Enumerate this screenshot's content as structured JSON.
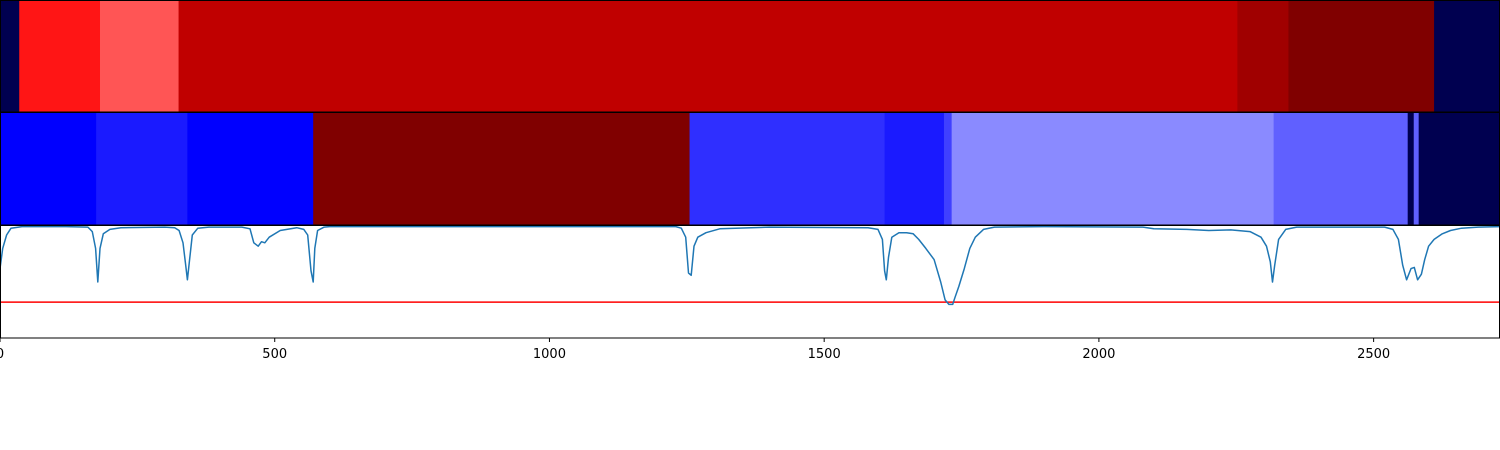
{
  "chart_data": [
    {
      "type": "heatmap",
      "segments": [
        {
          "start": 0,
          "end": 35,
          "color": "#000050"
        },
        {
          "start": 35,
          "end": 182,
          "color": "#ff1515"
        },
        {
          "start": 182,
          "end": 325,
          "color": "#ff5555"
        },
        {
          "start": 325,
          "end": 2252,
          "color": "#c00000"
        },
        {
          "start": 2252,
          "end": 2345,
          "color": "#a00000"
        },
        {
          "start": 2345,
          "end": 2610,
          "color": "#800000"
        },
        {
          "start": 2610,
          "end": 2730,
          "color": "#000050"
        }
      ]
    },
    {
      "type": "heatmap",
      "segments": [
        {
          "start": 0,
          "end": 175,
          "color": "#0000ff"
        },
        {
          "start": 175,
          "end": 341,
          "color": "#1a1aff"
        },
        {
          "start": 341,
          "end": 570,
          "color": "#0000ff"
        },
        {
          "start": 570,
          "end": 1255,
          "color": "#800000"
        },
        {
          "start": 1255,
          "end": 1610,
          "color": "#2f2fff"
        },
        {
          "start": 1610,
          "end": 1718,
          "color": "#1a1aff"
        },
        {
          "start": 1718,
          "end": 1732,
          "color": "#4040ff"
        },
        {
          "start": 1732,
          "end": 2318,
          "color": "#8a8aff"
        },
        {
          "start": 2318,
          "end": 2562,
          "color": "#6060ff"
        },
        {
          "start": 2562,
          "end": 2573,
          "color": "#000050"
        },
        {
          "start": 2573,
          "end": 2582,
          "color": "#6060ff"
        },
        {
          "start": 2582,
          "end": 2730,
          "color": "#000050"
        }
      ]
    },
    {
      "type": "line",
      "xlim": [
        0,
        2730
      ],
      "ylim": [
        0.0,
        1.0
      ],
      "xticks": [
        0,
        500,
        1000,
        1500,
        2000,
        2500
      ],
      "threshold": {
        "value": 0.32,
        "color": "#ff0000"
      },
      "series": [
        {
          "color": "#1f77b4",
          "points": [
            [
              0,
              0.62
            ],
            [
              5,
              0.8
            ],
            [
              12,
              0.92
            ],
            [
              20,
              0.98
            ],
            [
              40,
              0.995
            ],
            [
              120,
              0.995
            ],
            [
              160,
              0.99
            ],
            [
              168,
              0.95
            ],
            [
              174,
              0.8
            ],
            [
              178,
              0.5
            ],
            [
              182,
              0.8
            ],
            [
              188,
              0.93
            ],
            [
              200,
              0.97
            ],
            [
              220,
              0.985
            ],
            [
              300,
              0.99
            ],
            [
              318,
              0.985
            ],
            [
              326,
              0.96
            ],
            [
              333,
              0.85
            ],
            [
              338,
              0.65
            ],
            [
              341,
              0.52
            ],
            [
              345,
              0.7
            ],
            [
              350,
              0.92
            ],
            [
              360,
              0.98
            ],
            [
              380,
              0.99
            ],
            [
              440,
              0.99
            ],
            [
              455,
              0.975
            ],
            [
              462,
              0.85
            ],
            [
              470,
              0.82
            ],
            [
              476,
              0.86
            ],
            [
              482,
              0.85
            ],
            [
              490,
              0.9
            ],
            [
              510,
              0.96
            ],
            [
              540,
              0.985
            ],
            [
              553,
              0.97
            ],
            [
              560,
              0.92
            ],
            [
              566,
              0.6
            ],
            [
              570,
              0.5
            ],
            [
              573,
              0.8
            ],
            [
              578,
              0.96
            ],
            [
              590,
              0.99
            ],
            [
              600,
              0.995
            ],
            [
              1230,
              0.995
            ],
            [
              1240,
              0.98
            ],
            [
              1248,
              0.9
            ],
            [
              1253,
              0.58
            ],
            [
              1258,
              0.56
            ],
            [
              1263,
              0.82
            ],
            [
              1270,
              0.9
            ],
            [
              1285,
              0.94
            ],
            [
              1310,
              0.975
            ],
            [
              1400,
              0.99
            ],
            [
              1580,
              0.985
            ],
            [
              1598,
              0.97
            ],
            [
              1606,
              0.88
            ],
            [
              1610,
              0.6
            ],
            [
              1613,
              0.52
            ],
            [
              1617,
              0.72
            ],
            [
              1623,
              0.9
            ],
            [
              1636,
              0.94
            ],
            [
              1650,
              0.94
            ],
            [
              1662,
              0.93
            ],
            [
              1672,
              0.88
            ],
            [
              1685,
              0.8
            ],
            [
              1700,
              0.7
            ],
            [
              1712,
              0.5
            ],
            [
              1720,
              0.34
            ],
            [
              1727,
              0.3
            ],
            [
              1734,
              0.3
            ],
            [
              1738,
              0.36
            ],
            [
              1745,
              0.46
            ],
            [
              1755,
              0.62
            ],
            [
              1765,
              0.8
            ],
            [
              1775,
              0.9
            ],
            [
              1790,
              0.97
            ],
            [
              1810,
              0.99
            ],
            [
              1900,
              0.995
            ],
            [
              2080,
              0.99
            ],
            [
              2100,
              0.975
            ],
            [
              2160,
              0.97
            ],
            [
              2200,
              0.96
            ],
            [
              2240,
              0.965
            ],
            [
              2275,
              0.95
            ],
            [
              2295,
              0.9
            ],
            [
              2305,
              0.82
            ],
            [
              2312,
              0.68
            ],
            [
              2316,
              0.5
            ],
            [
              2320,
              0.65
            ],
            [
              2327,
              0.88
            ],
            [
              2340,
              0.97
            ],
            [
              2360,
              0.99
            ],
            [
              2520,
              0.99
            ],
            [
              2535,
              0.97
            ],
            [
              2545,
              0.88
            ],
            [
              2553,
              0.65
            ],
            [
              2560,
              0.52
            ],
            [
              2568,
              0.62
            ],
            [
              2574,
              0.63
            ],
            [
              2580,
              0.52
            ],
            [
              2587,
              0.57
            ],
            [
              2593,
              0.7
            ],
            [
              2600,
              0.82
            ],
            [
              2610,
              0.88
            ],
            [
              2625,
              0.93
            ],
            [
              2640,
              0.96
            ],
            [
              2660,
              0.98
            ],
            [
              2690,
              0.99
            ],
            [
              2730,
              0.995
            ]
          ]
        }
      ]
    }
  ]
}
